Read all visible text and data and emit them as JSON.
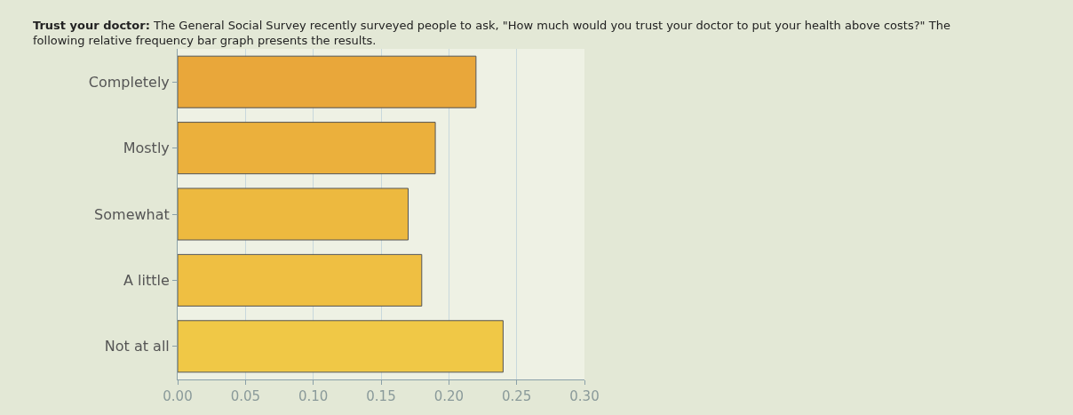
{
  "chart_data": {
    "type": "bar",
    "orientation": "horizontal",
    "title": "Trust your doctor:",
    "subtitle": "The General Social Survey recently surveyed people to ask, \"How much would you trust your doctor to put your health above costs?\" The following relative frequency bar graph presents the results.",
    "categories": [
      "Completely",
      "Mostly",
      "Somewhat",
      "A little",
      "Not at all"
    ],
    "values": [
      0.22,
      0.19,
      0.17,
      0.18,
      0.24
    ],
    "colors": [
      "#e9a73a",
      "#ebb03c",
      "#edb93f",
      "#efbf42",
      "#f0c846"
    ],
    "xlim": [
      0,
      0.3
    ],
    "xticks": [
      {
        "value": 0,
        "label": "0.00"
      },
      {
        "value": 0.05,
        "label": "0.05"
      },
      {
        "value": 0.1,
        "label": "0.10"
      },
      {
        "value": 0.15,
        "label": "0.15"
      },
      {
        "value": 0.2,
        "label": "0.20"
      },
      {
        "value": 0.25,
        "label": "0.25"
      },
      {
        "value": 0.3,
        "label": "0.30"
      }
    ],
    "grid": "x"
  }
}
